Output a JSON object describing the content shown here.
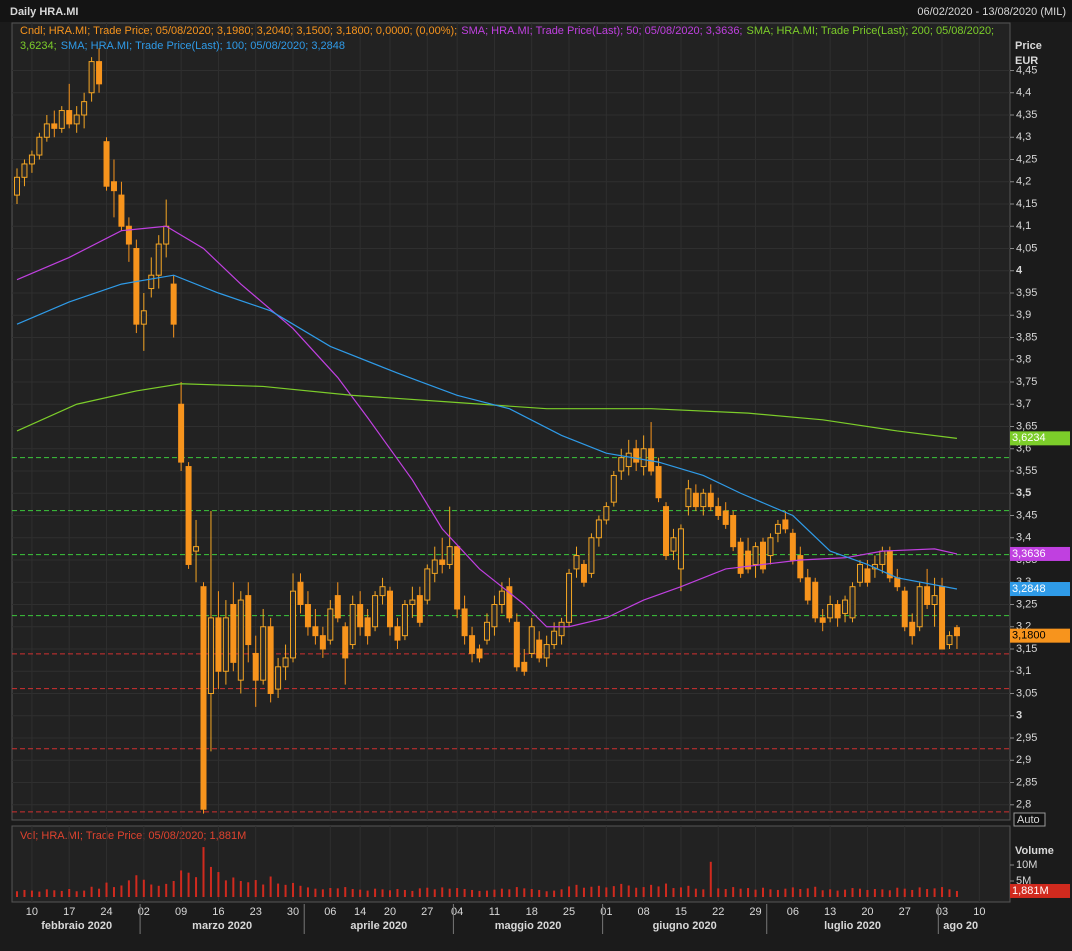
{
  "header": {
    "title": "Daily HRA.MI",
    "range": "06/02/2020 - 13/08/2020 (MIL)"
  },
  "chart_data": [
    {
      "type": "candlestick",
      "legend": "Cndl; HRA.MI; Trade Price;  05/08/2020; 3,1980; 3,2040; 3,1500; 3,1800; 0,0000; (0,00%);",
      "axis_title": "Price",
      "axis_unit": "EUR",
      "scale_mode": "Auto",
      "up_color": "#f5a623",
      "down_color": "#f7941d",
      "categories": [
        null,
        null,
        "10",
        null,
        null,
        null,
        null,
        "17",
        null,
        null,
        null,
        null,
        "24",
        null,
        null,
        null,
        null,
        "02",
        null,
        null,
        null,
        null,
        "09",
        null,
        null,
        null,
        null,
        "16",
        null,
        null,
        null,
        null,
        "23",
        null,
        null,
        null,
        null,
        "30",
        null,
        null,
        null,
        null,
        "06",
        null,
        null,
        null,
        "14",
        null,
        null,
        null,
        "20",
        null,
        null,
        null,
        null,
        "27",
        null,
        null,
        null,
        "04",
        null,
        null,
        null,
        null,
        "11",
        null,
        null,
        null,
        null,
        "18",
        null,
        null,
        null,
        null,
        "25",
        null,
        null,
        null,
        null,
        "01",
        null,
        null,
        null,
        null,
        "08",
        null,
        null,
        null,
        null,
        "15",
        null,
        null,
        null,
        null,
        "22",
        null,
        null,
        null,
        null,
        "29",
        null,
        null,
        null,
        null,
        "06",
        null,
        null,
        null,
        null,
        "13",
        null,
        null,
        null,
        null,
        "20",
        null,
        null,
        null,
        null,
        "27",
        null,
        null,
        null,
        null,
        "03",
        null,
        null,
        null,
        null,
        "10"
      ],
      "x_groups": [
        "febbraio 2020",
        "marzo 2020",
        "aprile 2020",
        "maggio 2020",
        "giugno 2020",
        "luglio 2020",
        "ago 20"
      ],
      "open": [
        4.17,
        4.21,
        4.24,
        4.26,
        4.3,
        4.33,
        4.32,
        4.36,
        4.33,
        4.35,
        4.4,
        4.47,
        4.29,
        4.2,
        4.17,
        4.1,
        4.05,
        3.88,
        3.96,
        3.99,
        4.06,
        3.97,
        3.7,
        3.56,
        3.37,
        3.29,
        3.05,
        3.22,
        3.1,
        3.25,
        3.08,
        3.27,
        3.14,
        3.08,
        3.2,
        3.06,
        3.11,
        3.13,
        3.3,
        3.25,
        3.2,
        3.18,
        3.17,
        3.27,
        3.2,
        3.16,
        3.25,
        3.22,
        3.2,
        3.27,
        3.28,
        3.2,
        3.18,
        3.25,
        3.27,
        3.26,
        3.32,
        3.35,
        3.34,
        3.38,
        3.24,
        3.18,
        3.15,
        3.17,
        3.2,
        3.25,
        3.29,
        3.21,
        3.12,
        3.14,
        3.17,
        3.13,
        3.16,
        3.18,
        3.21,
        3.33,
        3.34,
        3.32,
        3.4,
        3.44,
        3.48,
        3.55,
        3.56,
        3.6,
        3.56,
        3.6,
        3.56,
        3.47,
        3.37,
        3.33,
        3.47,
        3.5,
        3.47,
        3.5,
        3.47,
        3.46,
        3.45,
        3.39,
        3.37,
        3.34,
        3.39,
        3.36,
        3.41,
        3.44,
        3.41,
        3.36,
        3.31,
        3.3,
        3.22,
        3.22,
        3.25,
        3.23,
        3.22,
        3.3,
        3.33,
        3.33,
        3.34,
        3.37,
        3.31,
        3.28,
        3.21,
        3.2,
        3.29,
        3.25,
        3.29,
        3.16,
        3.198,
        null,
        null,
        null
      ],
      "high": [
        4.23,
        4.25,
        4.27,
        4.31,
        4.35,
        4.36,
        4.37,
        4.42,
        4.37,
        4.4,
        4.48,
        4.5,
        4.3,
        4.25,
        4.2,
        4.12,
        4.07,
        3.95,
        4.03,
        4.08,
        4.16,
        3.99,
        3.75,
        3.57,
        3.44,
        3.3,
        3.46,
        3.28,
        3.26,
        3.3,
        3.28,
        3.3,
        3.18,
        3.24,
        3.22,
        3.13,
        3.16,
        3.32,
        3.32,
        3.28,
        3.24,
        3.2,
        3.26,
        3.3,
        3.21,
        3.27,
        3.28,
        3.24,
        3.28,
        3.31,
        3.29,
        3.22,
        3.26,
        3.29,
        3.29,
        3.34,
        3.38,
        3.4,
        3.47,
        3.38,
        3.27,
        3.2,
        3.16,
        3.23,
        3.27,
        3.3,
        3.31,
        3.23,
        3.15,
        3.22,
        3.19,
        3.18,
        3.21,
        3.22,
        3.33,
        3.38,
        3.35,
        3.41,
        3.45,
        3.48,
        3.55,
        3.6,
        3.62,
        3.62,
        3.63,
        3.66,
        3.58,
        3.48,
        3.42,
        3.43,
        3.53,
        3.52,
        3.51,
        3.52,
        3.49,
        3.48,
        3.46,
        3.4,
        3.4,
        3.39,
        3.4,
        3.41,
        3.44,
        3.46,
        3.42,
        3.38,
        3.33,
        3.31,
        3.24,
        3.27,
        3.26,
        3.27,
        3.3,
        3.35,
        3.35,
        3.36,
        3.38,
        3.38,
        3.33,
        3.29,
        3.23,
        3.3,
        3.33,
        3.31,
        3.31,
        3.19,
        3.204,
        null,
        null,
        null
      ],
      "low": [
        4.15,
        4.19,
        4.22,
        4.25,
        4.29,
        4.3,
        4.31,
        4.32,
        4.31,
        4.32,
        4.38,
        4.4,
        4.18,
        4.12,
        4.09,
        4.02,
        3.86,
        3.82,
        3.94,
        3.96,
        4.03,
        3.85,
        3.55,
        3.33,
        3.3,
        2.78,
        2.92,
        3.06,
        3.07,
        3.1,
        3.05,
        3.12,
        3.02,
        3.07,
        3.03,
        3.04,
        3.08,
        3.12,
        3.23,
        3.18,
        3.16,
        3.13,
        3.16,
        3.21,
        3.07,
        3.15,
        3.18,
        3.16,
        3.19,
        3.25,
        3.18,
        3.15,
        3.17,
        3.22,
        3.2,
        3.25,
        3.3,
        3.32,
        3.33,
        3.22,
        3.16,
        3.12,
        3.12,
        3.16,
        3.18,
        3.23,
        3.21,
        3.1,
        3.09,
        3.13,
        3.12,
        3.11,
        3.15,
        3.16,
        3.2,
        3.31,
        3.29,
        3.31,
        3.38,
        3.43,
        3.47,
        3.53,
        3.54,
        3.55,
        3.54,
        3.54,
        3.48,
        3.35,
        3.35,
        3.28,
        3.45,
        3.46,
        3.45,
        3.46,
        3.44,
        3.42,
        3.37,
        3.31,
        3.32,
        3.31,
        3.32,
        3.34,
        3.39,
        3.41,
        3.34,
        3.3,
        3.25,
        3.21,
        3.19,
        3.21,
        3.2,
        3.21,
        3.21,
        3.29,
        3.29,
        3.31,
        3.32,
        3.3,
        3.28,
        3.19,
        3.16,
        3.19,
        3.24,
        3.2,
        3.15,
        3.15,
        3.15,
        null,
        null,
        null
      ],
      "close": [
        4.21,
        4.24,
        4.26,
        4.3,
        4.33,
        4.32,
        4.36,
        4.33,
        4.35,
        4.38,
        4.47,
        4.42,
        4.19,
        4.18,
        4.1,
        4.06,
        3.88,
        3.91,
        3.99,
        4.06,
        4.1,
        3.88,
        3.57,
        3.34,
        3.38,
        2.79,
        3.22,
        3.1,
        3.22,
        3.12,
        3.26,
        3.16,
        3.08,
        3.2,
        3.05,
        3.11,
        3.13,
        3.28,
        3.25,
        3.2,
        3.18,
        3.15,
        3.24,
        3.22,
        3.13,
        3.25,
        3.2,
        3.18,
        3.27,
        3.29,
        3.2,
        3.17,
        3.25,
        3.26,
        3.21,
        3.33,
        3.35,
        3.34,
        3.38,
        3.24,
        3.18,
        3.14,
        3.13,
        3.21,
        3.25,
        3.28,
        3.22,
        3.11,
        3.1,
        3.2,
        3.13,
        3.16,
        3.19,
        3.21,
        3.32,
        3.36,
        3.3,
        3.4,
        3.44,
        3.47,
        3.54,
        3.58,
        3.59,
        3.57,
        3.6,
        3.55,
        3.49,
        3.36,
        3.4,
        3.42,
        3.51,
        3.47,
        3.5,
        3.47,
        3.45,
        3.43,
        3.38,
        3.32,
        3.33,
        3.38,
        3.33,
        3.4,
        3.43,
        3.42,
        3.35,
        3.31,
        3.26,
        3.22,
        3.21,
        3.25,
        3.22,
        3.26,
        3.29,
        3.34,
        3.3,
        3.34,
        3.37,
        3.31,
        3.29,
        3.2,
        3.18,
        3.29,
        3.25,
        3.27,
        3.15,
        3.18,
        3.18,
        null,
        null,
        null
      ],
      "last_value": {
        "value": 3.18,
        "label": "3,1800"
      },
      "ylim": [
        2.777,
        4.541
      ],
      "yticks": [
        {
          "value": 2.8,
          "label": "2,8"
        },
        {
          "value": 2.85,
          "label": "2,85"
        },
        {
          "value": 2.9,
          "label": "2,9"
        },
        {
          "value": 2.95,
          "label": "2,95"
        },
        3,
        {
          "value": 3.05,
          "label": "3,05"
        },
        {
          "value": 3.1,
          "label": "3,1"
        },
        {
          "value": 3.15,
          "label": "3,15"
        },
        {
          "value": 3.2,
          "label": "3,2"
        },
        {
          "value": 3.25,
          "label": "3,25"
        },
        {
          "value": 3.3,
          "label": "3,3"
        },
        {
          "value": 3.35,
          "label": "3,35"
        },
        {
          "value": 3.4,
          "label": "3,4"
        },
        {
          "value": 3.45,
          "label": "3,45"
        },
        {
          "value": 3.5,
          "label": "3,5"
        },
        {
          "value": 3.55,
          "label": "3,55"
        },
        {
          "value": 3.6,
          "label": "3,6"
        },
        {
          "value": 3.65,
          "label": "3,65"
        },
        {
          "value": 3.7,
          "label": "3,7"
        },
        {
          "value": 3.75,
          "label": "3,75"
        },
        {
          "value": 3.8,
          "label": "3,8"
        },
        {
          "value": 3.85,
          "label": "3,85"
        },
        {
          "value": 3.9,
          "label": "3,9"
        },
        {
          "value": 3.95,
          "label": "3,95"
        },
        4,
        {
          "value": 4.05,
          "label": "4,05"
        },
        {
          "value": 4.1,
          "label": "4,1"
        },
        {
          "value": 4.15,
          "label": "4,15"
        },
        {
          "value": 4.2,
          "label": "4,2"
        },
        {
          "value": 4.25,
          "label": "4,25"
        },
        {
          "value": 4.3,
          "label": "4,3"
        },
        {
          "value": 4.35,
          "label": "4,35"
        },
        {
          "value": 4.4,
          "label": "4,4"
        },
        {
          "value": 4.45,
          "label": "4,45"
        }
      ],
      "series": [
        {
          "name": "SMA; HRA.MI; Trade Price(Last);  50;  05/08/2020; 3,3636;",
          "color": "#c040e0",
          "x": [
            0,
            7,
            14,
            20,
            25,
            30,
            37,
            43,
            47,
            53,
            57,
            62,
            68,
            71,
            74,
            79,
            84,
            89,
            95,
            100,
            105,
            111,
            116,
            123,
            126
          ],
          "values": [
            3.98,
            4.03,
            4.09,
            4.1,
            4.05,
            3.97,
            3.87,
            3.76,
            3.67,
            3.53,
            3.42,
            3.33,
            3.25,
            3.2,
            3.2,
            3.22,
            3.26,
            3.29,
            3.33,
            3.34,
            3.35,
            3.355,
            3.37,
            3.375,
            3.3636
          ],
          "last_value": {
            "value": 3.3636,
            "label": "3,3636"
          }
        },
        {
          "name": "SMA; HRA.MI; Trade Price(Last);  200; 05/08/2020; 3,6234;",
          "color": "#7ccd2a",
          "x": [
            0,
            8,
            16,
            22,
            33,
            45,
            58,
            71,
            85,
            98,
            108,
            118,
            126
          ],
          "values": [
            3.64,
            3.7,
            3.73,
            3.746,
            3.74,
            3.72,
            3.705,
            3.69,
            3.69,
            3.68,
            3.665,
            3.64,
            3.6234
          ],
          "last_value": {
            "value": 3.6234,
            "label": "3,6234"
          }
        },
        {
          "name": "SMA; HRA.MI; Trade Price(Last);  100;  05/08/2020; 3,2848",
          "color": "#2f9be8",
          "x": [
            0,
            7,
            14,
            21,
            27,
            34,
            42,
            51,
            59,
            66,
            73,
            79,
            86,
            92,
            97,
            104,
            109,
            114,
            118,
            126
          ],
          "values": [
            3.88,
            3.93,
            3.97,
            3.99,
            3.95,
            3.91,
            3.83,
            3.77,
            3.72,
            3.69,
            3.63,
            3.59,
            3.57,
            3.54,
            3.5,
            3.45,
            3.37,
            3.34,
            3.31,
            3.2848
          ],
          "last_value": {
            "value": 3.2848,
            "label": "3,2848"
          }
        }
      ],
      "hlines": [
        {
          "value": 3.58,
          "color": "#3cc83c"
        },
        {
          "value": 3.461,
          "color": "#3cc83c"
        },
        {
          "value": 3.362,
          "color": "#3cc83c"
        },
        {
          "value": 3.225,
          "color": "#3cc83c"
        },
        {
          "value": 3.139,
          "color": "#d03030"
        },
        {
          "value": 3.061,
          "color": "#d03030"
        },
        {
          "value": 2.926,
          "color": "#d03030"
        },
        {
          "value": 2.784,
          "color": "#d03030"
        }
      ]
    },
    {
      "type": "bar",
      "legend": "Vol; HRA.MI; Trade Price; 05/08/2020; 1,881M",
      "axis_title": "Volume",
      "color": "#d02a1e",
      "values": [
        1.8,
        2.2,
        2.0,
        1.7,
        2.4,
        2.1,
        1.9,
        2.5,
        1.8,
        2.0,
        3.2,
        2.6,
        4.5,
        3.1,
        3.6,
        5.2,
        6.8,
        5.4,
        3.9,
        3.5,
        4.1,
        5.0,
        8.3,
        7.6,
        6.2,
        15.6,
        9.4,
        7.8,
        5.2,
        6.1,
        5.0,
        4.6,
        5.3,
        3.9,
        6.4,
        4.2,
        3.8,
        4.4,
        3.5,
        3.0,
        2.6,
        2.4,
        2.8,
        2.7,
        3.1,
        2.5,
        2.3,
        2.0,
        2.6,
        2.4,
        2.1,
        2.5,
        2.2,
        1.9,
        2.7,
        2.9,
        2.4,
        3.0,
        2.6,
        2.8,
        2.5,
        2.2,
        1.9,
        2.0,
        2.3,
        2.6,
        2.4,
        3.1,
        2.7,
        2.5,
        2.2,
        1.8,
        2.0,
        2.4,
        3.3,
        3.8,
        2.9,
        3.2,
        3.5,
        3.0,
        3.4,
        4.1,
        3.6,
        2.9,
        3.1,
        3.8,
        3.3,
        4.2,
        2.8,
        3.0,
        3.5,
        2.6,
        2.4,
        11.0,
        2.7,
        2.5,
        3.1,
        2.6,
        2.8,
        2.3,
        2.9,
        2.4,
        2.2,
        2.6,
        3.0,
        2.5,
        2.7,
        3.2,
        2.1,
        2.4,
        2.0,
        2.3,
        2.8,
        2.6,
        2.2,
        2.5,
        2.4,
        2.1,
        2.9,
        2.6,
        2.2,
        3.0,
        2.5,
        2.7,
        3.1,
        2.4,
        1.881,
        null,
        null,
        null
      ],
      "ylim": [
        0,
        16
      ],
      "yticks": [
        {
          "value": 5,
          "label": "5M"
        },
        {
          "value": 10,
          "label": "10M"
        }
      ],
      "last_value": {
        "value": 1.881,
        "label": "1,881M"
      }
    }
  ]
}
